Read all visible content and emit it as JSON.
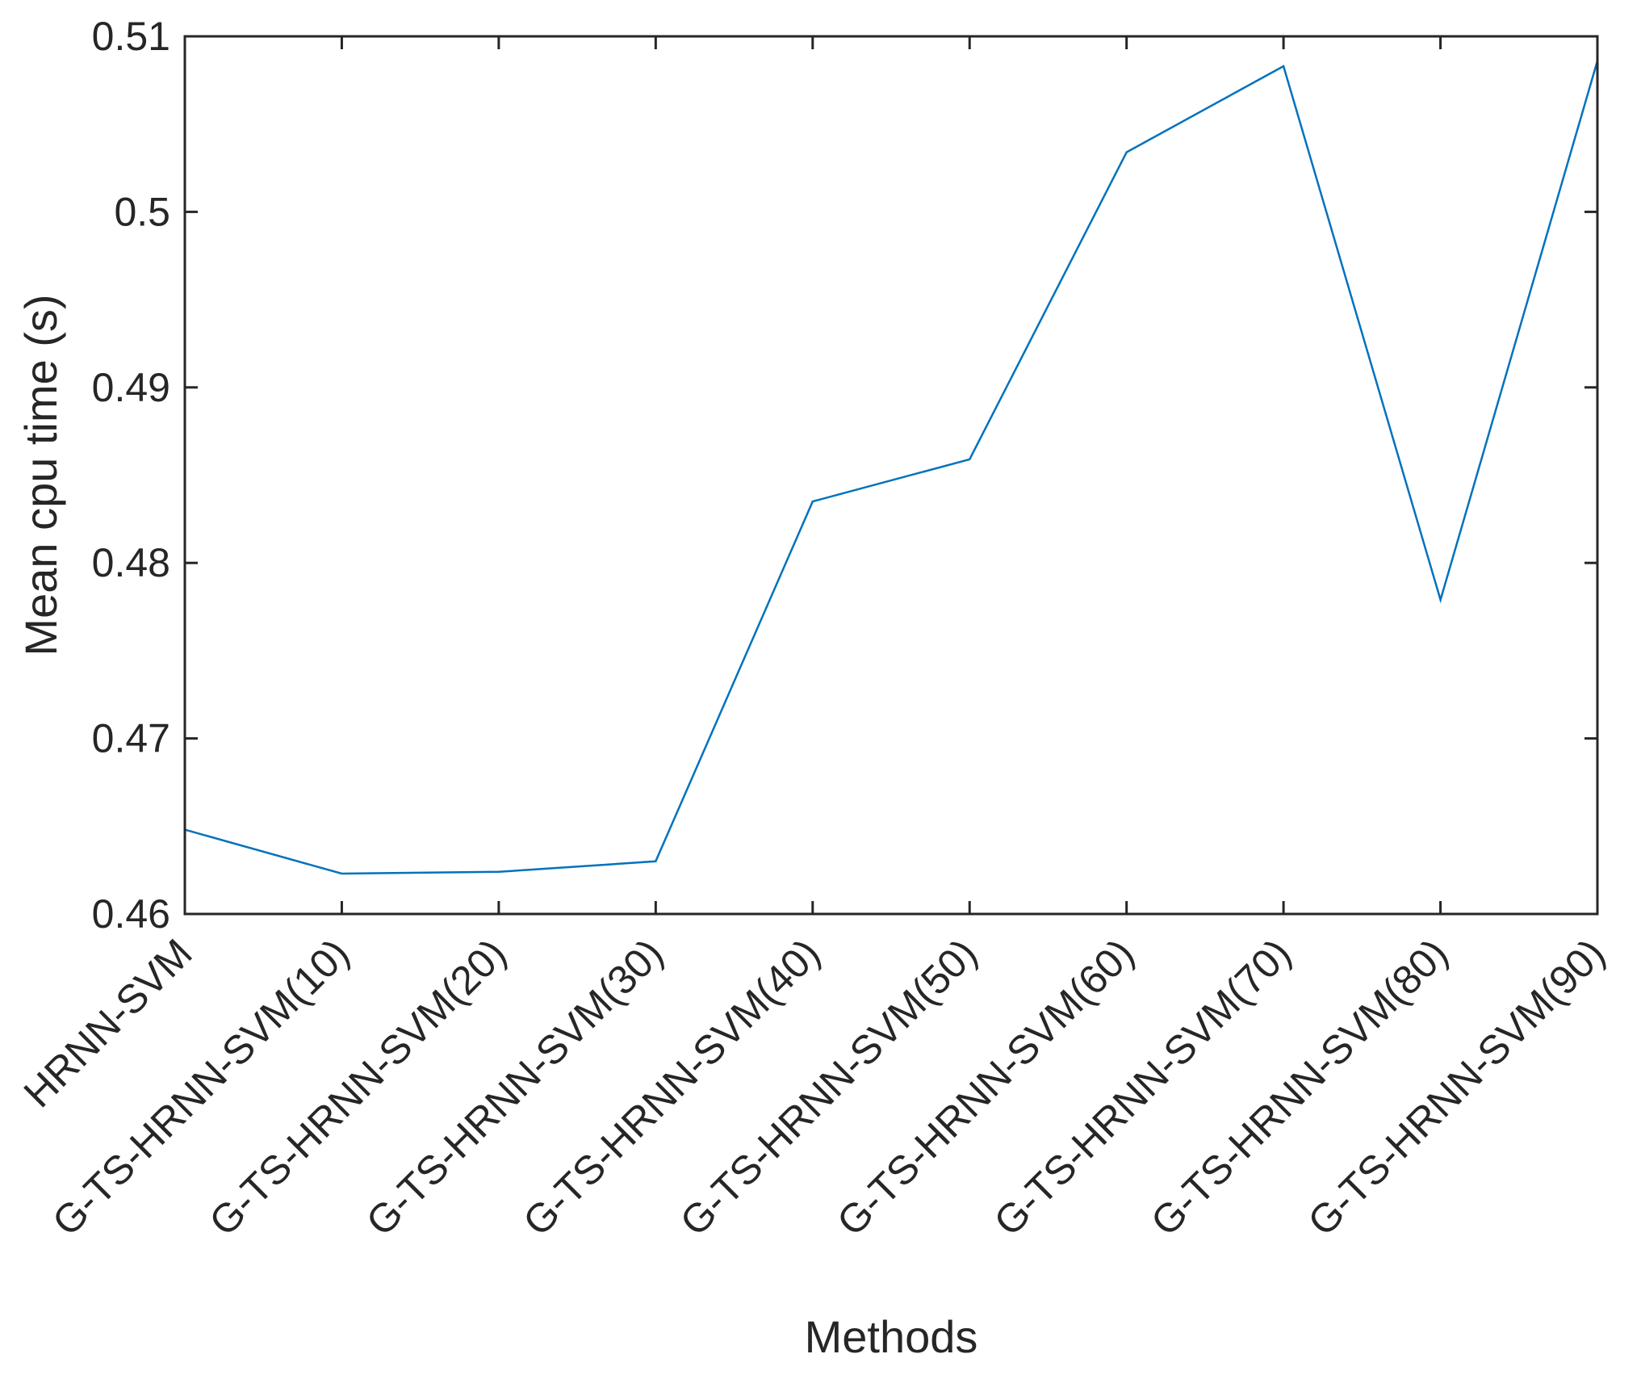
{
  "chart_data": {
    "type": "line",
    "title": "",
    "xlabel": "Methods",
    "ylabel": "Mean cpu time (s)",
    "categories": [
      "HRNN-SVM",
      "G-TS-HRNN-SVM(10)",
      "G-TS-HRNN-SVM(20)",
      "G-TS-HRNN-SVM(30)",
      "G-TS-HRNN-SVM(40)",
      "G-TS-HRNN-SVM(50)",
      "G-TS-HRNN-SVM(60)",
      "G-TS-HRNN-SVM(70)",
      "G-TS-HRNN-SVM(80)",
      "G-TS-HRNN-SVM(90)"
    ],
    "series": [
      {
        "color": "#0072BD",
        "values": [
          0.4648,
          0.4623,
          0.4624,
          0.463,
          0.4835,
          0.4859,
          0.5034,
          0.5083,
          0.4779,
          0.5086
        ]
      }
    ],
    "ylim": [
      0.46,
      0.51
    ],
    "yticks": [
      "0.46",
      "0.47",
      "0.48",
      "0.49",
      "0.5",
      "0.51"
    ],
    "ytick_values": [
      0.46,
      0.47,
      0.48,
      0.49,
      0.5,
      0.51
    ],
    "grid": false,
    "legend": "none"
  }
}
